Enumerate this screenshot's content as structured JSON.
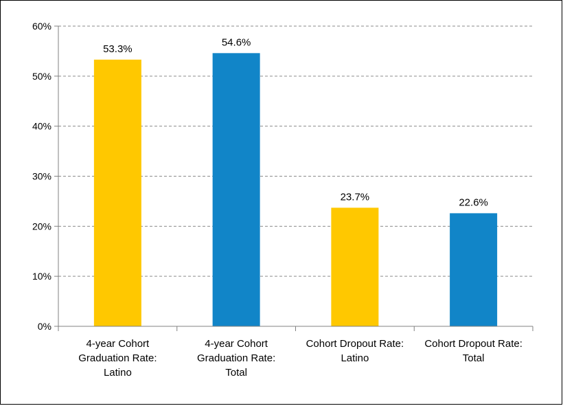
{
  "chart_data": {
    "type": "bar",
    "title": "",
    "xlabel": "",
    "ylabel": "",
    "ylim": [
      0,
      60
    ],
    "y_ticks": [
      0,
      10,
      20,
      30,
      40,
      50,
      60
    ],
    "y_tick_labels": [
      "0%",
      "10%",
      "20%",
      "30%",
      "40%",
      "50%",
      "60%"
    ],
    "grid": true,
    "legend": "none",
    "categories": [
      [
        "4-year Cohort",
        "Graduation Rate:",
        "Latino"
      ],
      [
        "4-year Cohort",
        "Graduation Rate:",
        "Total"
      ],
      [
        "Cohort Dropout Rate:",
        "Latino"
      ],
      [
        "Cohort Dropout Rate:",
        "Total"
      ]
    ],
    "values": [
      53.3,
      54.6,
      23.7,
      22.6
    ],
    "value_labels": [
      "53.3%",
      "54.6%",
      "23.7%",
      "22.6%"
    ],
    "colors": [
      "#FFC800",
      "#1185C8",
      "#FFC800",
      "#1185C8"
    ]
  }
}
